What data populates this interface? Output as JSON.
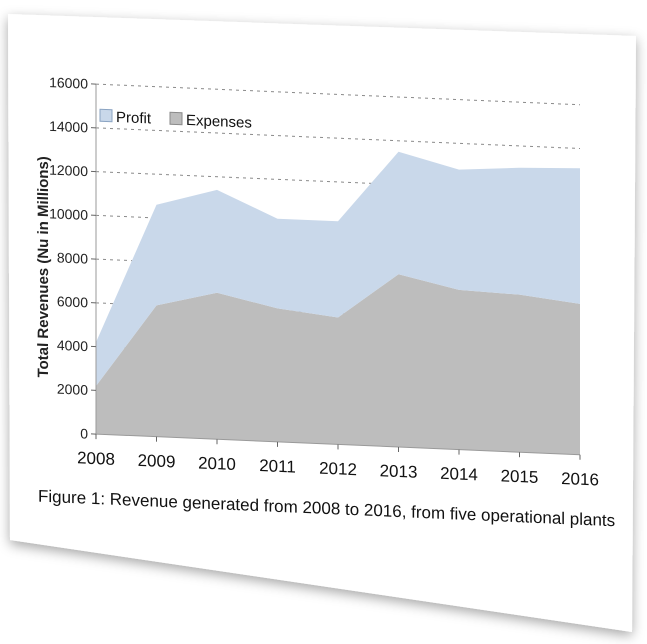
{
  "chart_data": {
    "type": "area",
    "stacked": true,
    "categories": [
      "2008",
      "2009",
      "2010",
      "2011",
      "2012",
      "2013",
      "2014",
      "2015",
      "2016"
    ],
    "series": [
      {
        "name": "Expenses",
        "values": [
          2200,
          6000,
          6700,
          6100,
          5800,
          7900,
          7300,
          7200,
          6900
        ],
        "color": "#bdbdbd"
      },
      {
        "name": "Profit",
        "values": [
          2000,
          4600,
          4700,
          4100,
          4400,
          5600,
          5500,
          5800,
          6200
        ],
        "color": "#c9d8ea"
      }
    ],
    "totals": [
      4200,
      10600,
      11400,
      10200,
      10200,
      13500,
      12800,
      13000,
      13100
    ],
    "ylabel": "Total Revenues (Nu in Millions)",
    "xlabel": "",
    "ylim": [
      0,
      16000
    ],
    "yticks": [
      "0",
      "2000",
      "4000",
      "6000",
      "8000",
      "10000",
      "12000",
      "14000",
      "16000"
    ],
    "grid": true,
    "legend_position": "top-left",
    "caption": "Figure 1: Revenue generated from 2008 to 2016, from five operational plants"
  },
  "colors": {
    "profit_area": "#c9d8ea",
    "expenses_area": "#bdbdbd",
    "grid": "#8a8a8a",
    "card_background": "#ffffff"
  }
}
